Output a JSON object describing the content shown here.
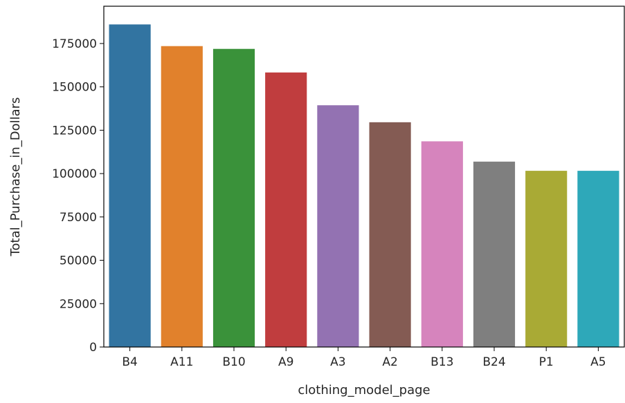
{
  "chart_data": {
    "type": "bar",
    "xlabel": "clothing_model_page",
    "ylabel": "Total_Purchase_in_Dollars",
    "categories": [
      "B4",
      "A11",
      "B10",
      "A9",
      "A3",
      "A2",
      "B13",
      "B24",
      "P1",
      "A5"
    ],
    "values": [
      186000,
      173500,
      171900,
      158300,
      139400,
      129600,
      118600,
      106900,
      101600,
      101600
    ],
    "colors": [
      "#3274a1",
      "#e1812c",
      "#3a923a",
      "#c03d3e",
      "#9372b2",
      "#845b53",
      "#d684bd",
      "#7f7f7f",
      "#a9aa35",
      "#2ea8b9"
    ],
    "ylim": [
      0,
      196500
    ],
    "yticks": [
      "0",
      "25000",
      "50000",
      "75000",
      "100000",
      "125000",
      "150000",
      "175000"
    ],
    "ytick_values": [
      0,
      25000,
      50000,
      75000,
      100000,
      125000,
      150000,
      175000
    ]
  }
}
